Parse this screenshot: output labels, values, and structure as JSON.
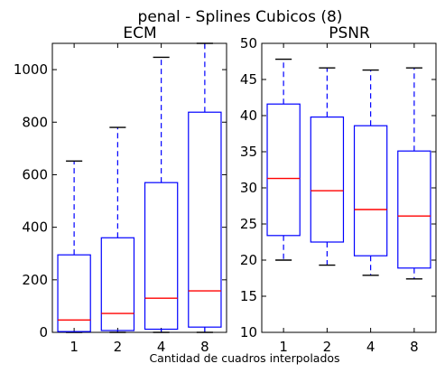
{
  "figure": {
    "suptitle": "penal - Splines Cubicos (8)",
    "xlabel": "Cantidad de cuadros interpolados"
  },
  "colors": {
    "box": "#0000ff",
    "median": "#ff0000",
    "axes": "#000000"
  },
  "chart_data": [
    {
      "type": "box",
      "title": "ECM",
      "xlabel": "",
      "ylabel": "",
      "categories": [
        "1",
        "2",
        "4",
        "8"
      ],
      "ylim": [
        0,
        1100
      ],
      "yticks": [
        0,
        200,
        400,
        600,
        800,
        1000
      ],
      "ytick_labels": [
        "0",
        "200",
        "400",
        "600",
        "800",
        "1000"
      ],
      "boxes": [
        {
          "label": "1",
          "whislo": 0,
          "q1": 3,
          "med": 47,
          "q3": 295,
          "whishi": 652
        },
        {
          "label": "2",
          "whislo": 0,
          "q1": 7,
          "med": 72,
          "q3": 360,
          "whishi": 780
        },
        {
          "label": "4",
          "whislo": 0,
          "q1": 12,
          "med": 130,
          "q3": 570,
          "whishi": 1047
        },
        {
          "label": "8",
          "whislo": 0,
          "q1": 20,
          "med": 158,
          "q3": 838,
          "whishi": 1100
        }
      ]
    },
    {
      "type": "box",
      "title": "PSNR",
      "xlabel": "",
      "ylabel": "",
      "categories": [
        "1",
        "2",
        "4",
        "8"
      ],
      "ylim": [
        10,
        50
      ],
      "yticks": [
        10,
        15,
        20,
        25,
        30,
        35,
        40,
        45,
        50
      ],
      "ytick_labels": [
        "10",
        "15",
        "20",
        "25",
        "30",
        "35",
        "40",
        "45",
        "50"
      ],
      "boxes": [
        {
          "label": "1",
          "whislo": 20.0,
          "q1": 23.4,
          "med": 31.3,
          "q3": 41.6,
          "whishi": 47.8
        },
        {
          "label": "2",
          "whislo": 19.3,
          "q1": 22.5,
          "med": 29.6,
          "q3": 39.8,
          "whishi": 46.6
        },
        {
          "label": "4",
          "whislo": 17.9,
          "q1": 20.6,
          "med": 27.0,
          "q3": 38.6,
          "whishi": 46.3
        },
        {
          "label": "8",
          "whislo": 17.4,
          "q1": 18.9,
          "med": 26.1,
          "q3": 35.1,
          "whishi": 46.6
        }
      ]
    }
  ]
}
